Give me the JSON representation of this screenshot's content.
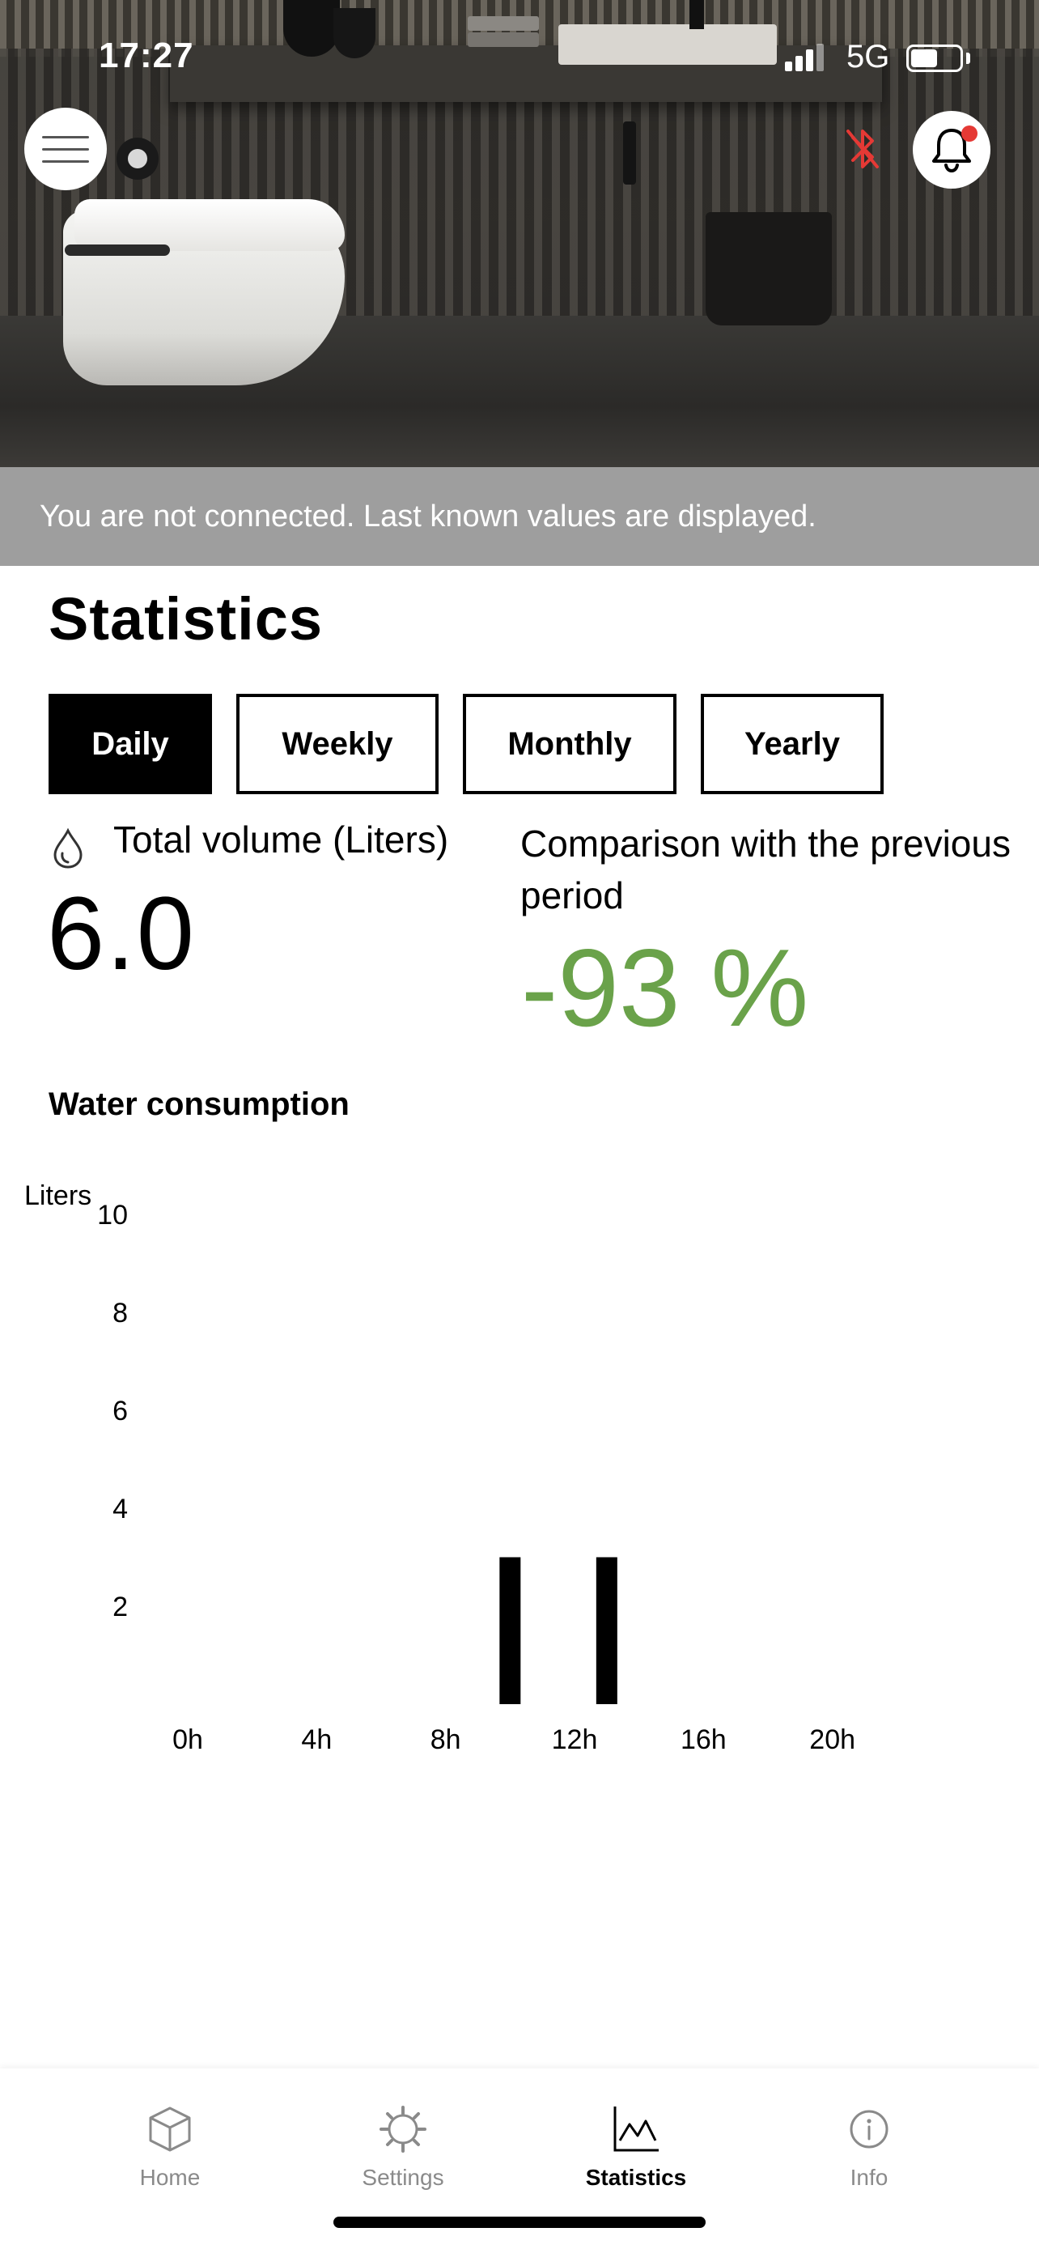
{
  "status_bar": {
    "time": "17:27",
    "network": "5G",
    "battery_level": 0.55
  },
  "icons": {
    "menu": "hamburger-menu-icon",
    "bluetooth": "bluetooth-disabled-icon",
    "notifications": "bell-icon",
    "volume": "water-drop-icon"
  },
  "colors": {
    "accent_green": "#6aa24a",
    "bluetooth_off": "#e53935",
    "banner_bg": "#9e9e9e"
  },
  "banner": {
    "text": "You are not connected. Last known values are displayed."
  },
  "page": {
    "title": "Statistics"
  },
  "period_tabs": [
    {
      "label": "Daily",
      "selected": true
    },
    {
      "label": "Weekly",
      "selected": false
    },
    {
      "label": "Monthly",
      "selected": false
    },
    {
      "label": "Yearly",
      "selected": false
    }
  ],
  "metrics": {
    "volume_label": "Total volume (Liters)",
    "volume_value": "6.0",
    "comparison_label": "Comparison with the previous period",
    "comparison_value": "-93 %"
  },
  "chart_data": {
    "type": "bar",
    "title": "Water consumption",
    "ylabel": "Liters",
    "xlabel": "",
    "ylim": [
      0,
      10
    ],
    "yticks": [
      "10",
      "8",
      "6",
      "4",
      "2"
    ],
    "xticks": [
      "0h",
      "4h",
      "8h",
      "12h",
      "16h",
      "20h"
    ],
    "xlim": [
      0,
      24
    ],
    "bars": [
      {
        "x": 10,
        "value": 3.0
      },
      {
        "x": 13,
        "value": 3.0
      }
    ]
  },
  "nav": [
    {
      "label": "Home",
      "icon": "cube-icon",
      "active": false
    },
    {
      "label": "Settings",
      "icon": "gear-icon",
      "active": false
    },
    {
      "label": "Statistics",
      "icon": "chart-icon",
      "active": true
    },
    {
      "label": "Info",
      "icon": "info-icon",
      "active": false
    }
  ]
}
